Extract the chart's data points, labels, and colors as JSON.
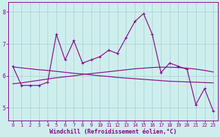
{
  "xlabel": "Windchill (Refroidissement éolien,°C)",
  "background_color": "#ceeeed",
  "grid_color": "#aad4d2",
  "line_color": "#880088",
  "x": [
    0,
    1,
    2,
    3,
    4,
    5,
    6,
    7,
    8,
    9,
    10,
    11,
    12,
    13,
    14,
    15,
    16,
    17,
    18,
    19,
    20,
    21,
    22,
    23
  ],
  "main_line": [
    6.3,
    5.7,
    5.7,
    5.7,
    5.8,
    7.3,
    6.5,
    7.1,
    6.4,
    6.5,
    6.6,
    6.8,
    6.7,
    7.2,
    7.7,
    7.95,
    7.3,
    6.1,
    6.4,
    6.3,
    6.2,
    5.1,
    5.6,
    4.9
  ],
  "trend_up": [
    5.75,
    5.78,
    5.82,
    5.86,
    5.9,
    5.94,
    5.97,
    6.0,
    6.04,
    6.07,
    6.1,
    6.13,
    6.16,
    6.19,
    6.22,
    6.24,
    6.26,
    6.27,
    6.27,
    6.26,
    6.24,
    6.21,
    6.17,
    6.12
  ],
  "trend_down": [
    6.28,
    6.25,
    6.22,
    6.19,
    6.17,
    6.14,
    6.11,
    6.08,
    6.06,
    6.03,
    6.0,
    5.98,
    5.95,
    5.93,
    5.91,
    5.89,
    5.87,
    5.85,
    5.83,
    5.82,
    5.81,
    5.8,
    5.79,
    5.78
  ],
  "ylim_bottom": 4.6,
  "ylim_top": 8.3,
  "yticks": [
    5,
    6,
    7,
    8
  ],
  "xticks": [
    0,
    1,
    2,
    3,
    4,
    5,
    6,
    7,
    8,
    9,
    10,
    11,
    12,
    13,
    14,
    15,
    16,
    17,
    18,
    19,
    20,
    21,
    22,
    23
  ],
  "tick_fontsize": 5.5,
  "xlabel_fontsize": 6.0,
  "marker_size": 3.5
}
